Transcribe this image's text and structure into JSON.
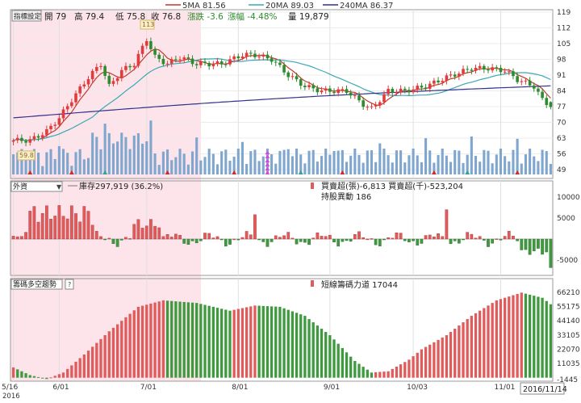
{
  "colors": {
    "up": "#e23b3b",
    "down": "#2e8b2e",
    "ma5": "#c0392b",
    "ma20": "#3aa7b5",
    "ma240": "#34318c",
    "volume": "#7fa6cf",
    "shade": "#fde4ea",
    "positive_bar": "#e05b5b",
    "negative_bar": "#3f9a3f"
  },
  "legend": {
    "ma5": "5MA 81.56",
    "ma20": "20MA 89.03",
    "ma240": "240MA 86.37"
  },
  "top_panel": {
    "indicator_select": "指標設定",
    "open": "開 79",
    "high": "高 79.4",
    "low": "低 75.8",
    "close": "收 76.8",
    "change": "漲跌 -3.6",
    "change_pct": "漲幅 -4.48%",
    "volume": "量 19,879",
    "high_marker": "113",
    "low_marker": "59.8"
  },
  "mid_panel": {
    "select": "外資",
    "holding": "庫存297,919 (36.2%)",
    "net": "買賣超(張)-6,813 買賣超(千)-523,204",
    "change": "持股異動 186"
  },
  "bottom_panel": {
    "select": "籌碼多空趨勢",
    "help": "?",
    "legend": "短線籌碼力道 17044"
  },
  "x_axis": {
    "dates": [
      "5/16",
      "6/01",
      "7/01",
      "8/01",
      "9/01",
      "10/03",
      "11/01"
    ],
    "year": "2016",
    "current_date": "2016/11/14"
  },
  "chart_data": [
    {
      "type": "candlestick",
      "title": "",
      "yticks": [
        49,
        56,
        63,
        70,
        77,
        84,
        91,
        98,
        105,
        112,
        119
      ],
      "ylim": [
        49,
        119
      ],
      "series": [
        {
          "name": "5MA",
          "value": 81.56
        },
        {
          "name": "20MA",
          "value": 89.03
        },
        {
          "name": "240MA",
          "value": 86.37
        }
      ],
      "last_bar": {
        "open": 79,
        "high": 79.4,
        "low": 75.8,
        "close": 76.8,
        "volume": 19879
      }
    },
    {
      "type": "bar",
      "title": "外資",
      "yticks": [
        10000,
        5000,
        -5000
      ],
      "values_summary": {
        "net_lots": -6813,
        "net_thousands": -523204,
        "holding_change": 186
      }
    },
    {
      "type": "bar",
      "title": "籌碼多空趨勢",
      "yticks": [
        66210,
        55175,
        44140,
        33105,
        22070,
        11035,
        -1445
      ],
      "current_value": 17044
    }
  ]
}
